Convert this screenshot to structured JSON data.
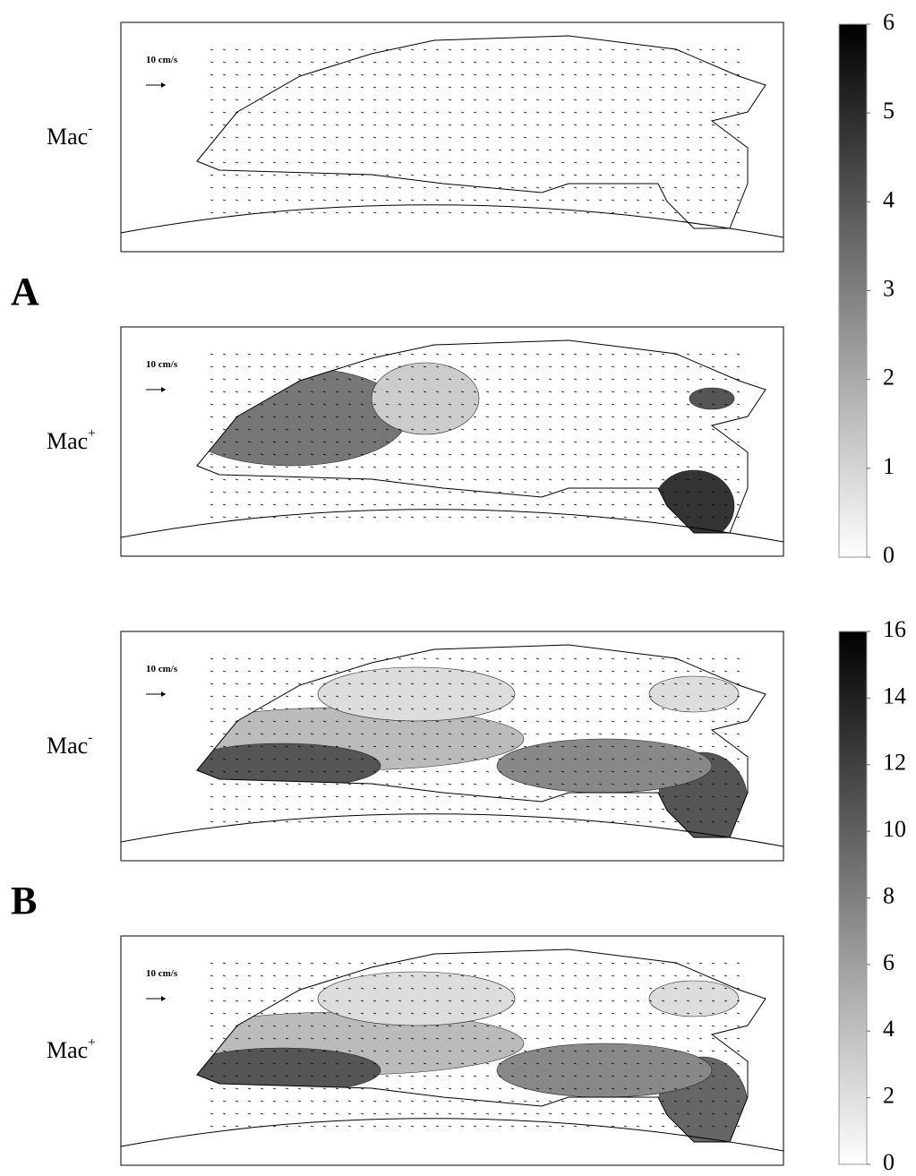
{
  "panel_groups": [
    {
      "label": "A",
      "colorbar": {
        "lim": [
          0,
          6
        ],
        "ticks": [
          0,
          1,
          2,
          3,
          4,
          5,
          6
        ]
      },
      "panels": [
        {
          "name": "Mac",
          "sup": "-",
          "scale_label": "10 cm/s"
        },
        {
          "name": "Mac",
          "sup": "+",
          "scale_label": "10 cm/s"
        }
      ]
    },
    {
      "label": "B",
      "colorbar": {
        "lim": [
          0,
          16
        ],
        "ticks": [
          0,
          2,
          4,
          6,
          8,
          10,
          12,
          14,
          16
        ]
      },
      "panels": [
        {
          "name": "Mac",
          "sup": "-",
          "scale_label": "10 cm/s"
        },
        {
          "name": "Mac",
          "sup": "+",
          "scale_label": "10 cm/s"
        }
      ]
    }
  ]
}
